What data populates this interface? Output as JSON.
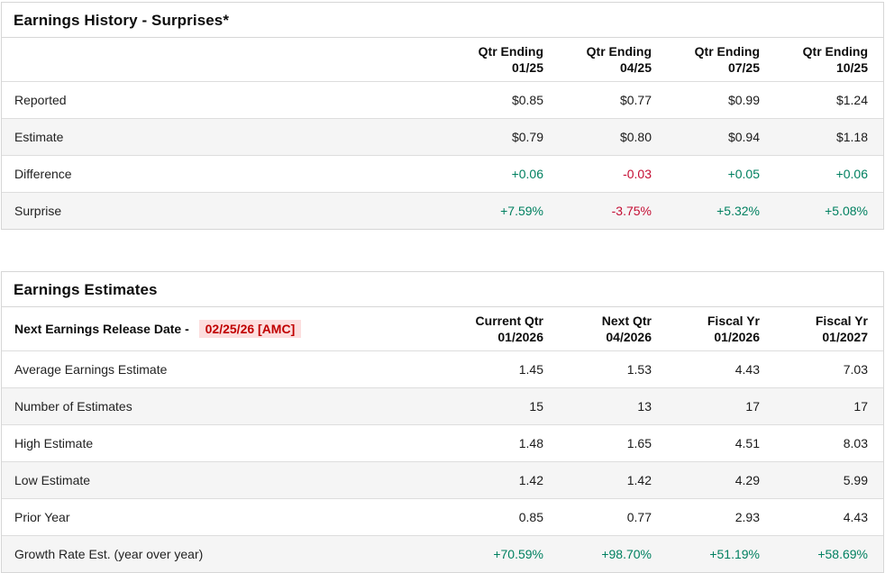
{
  "colors": {
    "positive_green": "#008060",
    "negative_red": "#c40d33",
    "release_date_text": "#c00000",
    "release_date_highlight": "#fcdede",
    "zebra_row_background": "#f5f5f5",
    "panel_border": "#d6d6d6"
  },
  "earnings_history": {
    "title": "Earnings History - Surprises*",
    "columns": [
      {
        "label": "Qtr Ending",
        "sub": "01/25"
      },
      {
        "label": "Qtr Ending",
        "sub": "04/25"
      },
      {
        "label": "Qtr Ending",
        "sub": "07/25"
      },
      {
        "label": "Qtr Ending",
        "sub": "10/25"
      }
    ],
    "rows": [
      {
        "label": "Reported",
        "values": [
          "$0.85",
          "$0.77",
          "$0.99",
          "$1.24"
        ]
      },
      {
        "label": "Estimate",
        "values": [
          "$0.79",
          "$0.80",
          "$0.94",
          "$1.18"
        ]
      },
      {
        "label": "Difference",
        "values": [
          "+0.06",
          "-0.03",
          "+0.05",
          "+0.06"
        ]
      },
      {
        "label": "Surprise",
        "values": [
          "+7.59%",
          "-3.75%",
          "+5.32%",
          "+5.08%"
        ]
      }
    ]
  },
  "earnings_estimates": {
    "title": "Earnings Estimates",
    "release_label": "Next Earnings Release Date -",
    "release_date": "02/25/26 [AMC]",
    "columns": [
      {
        "label": "Current Qtr",
        "sub": "01/2026"
      },
      {
        "label": "Next Qtr",
        "sub": "04/2026"
      },
      {
        "label": "Fiscal Yr",
        "sub": "01/2026"
      },
      {
        "label": "Fiscal Yr",
        "sub": "01/2027"
      }
    ],
    "rows": [
      {
        "label": "Average Earnings Estimate",
        "values": [
          "1.45",
          "1.53",
          "4.43",
          "7.03"
        ]
      },
      {
        "label": "Number of Estimates",
        "values": [
          "15",
          "13",
          "17",
          "17"
        ]
      },
      {
        "label": "High Estimate",
        "values": [
          "1.48",
          "1.65",
          "4.51",
          "8.03"
        ]
      },
      {
        "label": "Low Estimate",
        "values": [
          "1.42",
          "1.42",
          "4.29",
          "5.99"
        ]
      },
      {
        "label": "Prior Year",
        "values": [
          "0.85",
          "0.77",
          "2.93",
          "4.43"
        ]
      },
      {
        "label": "Growth Rate Est. (year over year)",
        "values": [
          "+70.59%",
          "+98.70%",
          "+51.19%",
          "+58.69%"
        ]
      }
    ]
  }
}
